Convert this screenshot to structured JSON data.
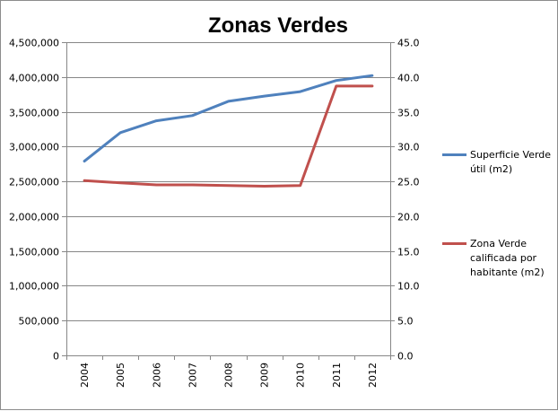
{
  "chart_data": {
    "type": "line",
    "title": "Zonas Verdes",
    "categories": [
      "2004",
      "2005",
      "2006",
      "2007",
      "2008",
      "2009",
      "2010",
      "2011",
      "2012"
    ],
    "y_left": {
      "ylim": [
        0,
        4500000
      ],
      "tick_values": [
        0,
        500000,
        1000000,
        1500000,
        2000000,
        2500000,
        3000000,
        3500000,
        4000000,
        4500000
      ],
      "tick_labels": [
        "0",
        "500,000",
        "1,000,000",
        "1,500,000",
        "2,000,000",
        "2,500,000",
        "3,000,000",
        "3,500,000",
        "4,000,000",
        "4,500,000"
      ]
    },
    "y_right": {
      "ylim": [
        0,
        45
      ],
      "tick_values": [
        0,
        5,
        10,
        15,
        20,
        25,
        30,
        35,
        40,
        45
      ],
      "tick_labels": [
        "0.0",
        "5.0",
        "10.0",
        "15.0",
        "20.0",
        "25.0",
        "30.0",
        "35.0",
        "40.0",
        "45.0"
      ]
    },
    "series": [
      {
        "name": "Superficie Verde útil (m2)",
        "legend_lines": [
          "Superficie Verde",
          "útil (m2)"
        ],
        "axis": "left",
        "color": "#4f81bd",
        "values": [
          2790000,
          3200000,
          3370000,
          3445000,
          3650000,
          3725000,
          3790000,
          3950000,
          4020000
        ]
      },
      {
        "name": "Zona Verde calificada por habitante (m2)",
        "legend_lines": [
          "Zona Verde",
          "calificada por",
          "habitante (m2)"
        ],
        "axis": "right",
        "color": "#c0504d",
        "values": [
          25.1,
          24.8,
          24.5,
          24.5,
          24.4,
          24.3,
          24.4,
          38.7,
          38.7
        ]
      }
    ],
    "grid": "horizontal major gridlines",
    "legend_position": "right"
  }
}
